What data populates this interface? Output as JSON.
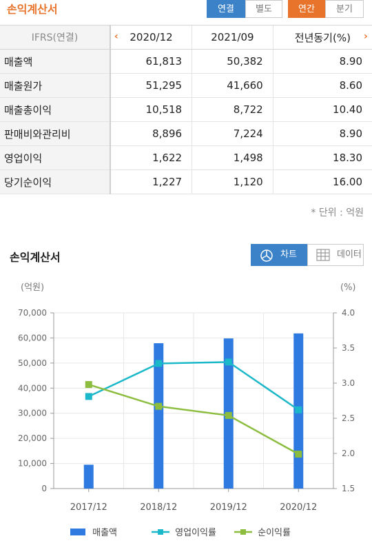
{
  "header": {
    "title": "손익계산서",
    "toggle1": {
      "consolidated": "연결",
      "separate": "별도"
    },
    "toggle2": {
      "annual": "연간",
      "quarterly": "분기"
    }
  },
  "table": {
    "columns": [
      "IFRS(연결)",
      "2020/12",
      "2021/09",
      "전년동기(%)"
    ],
    "rows": [
      {
        "label": "매출액",
        "v1": "61,813",
        "v2": "50,382",
        "v3": "8.90"
      },
      {
        "label": "매출원가",
        "v1": "51,295",
        "v2": "41,660",
        "v3": "8.60"
      },
      {
        "label": "매출총이익",
        "v1": "10,518",
        "v2": "8,722",
        "v3": "10.40"
      },
      {
        "label": "판매비와관리비",
        "v1": "8,896",
        "v2": "7,224",
        "v3": "8.90"
      },
      {
        "label": "영업이익",
        "v1": "1,622",
        "v2": "1,498",
        "v3": "18.30"
      },
      {
        "label": "당기순이익",
        "v1": "1,227",
        "v2": "1,120",
        "v3": "16.00"
      }
    ],
    "unit_note": "* 단위 : 억원"
  },
  "chart_section": {
    "title": "손익계산서",
    "chart_button": "차트",
    "data_button": "데이터"
  },
  "colors": {
    "blue": "#2f7ae0",
    "cyan": "#1bb8c9",
    "green": "#8cbd3f",
    "orange": "#e8742c"
  },
  "chart_data": {
    "type": "bar",
    "categories": [
      "2017/12",
      "2018/12",
      "2019/12",
      "2020/12"
    ],
    "y_left_label": "(억원)",
    "y_right_label": "(%)",
    "y_left_range": [
      0,
      70000
    ],
    "y_right_range": [
      1.5,
      4.0
    ],
    "y_left_ticks": [
      "0",
      "10,000",
      "20,000",
      "30,000",
      "40,000",
      "50,000",
      "60,000",
      "70,000"
    ],
    "y_right_ticks": [
      "1.5",
      "2.0",
      "2.5",
      "3.0",
      "3.5",
      "4.0"
    ],
    "grid": true,
    "legend_position": "bottom",
    "series": [
      {
        "name": "매출액",
        "type": "bar",
        "axis": "left",
        "values": [
          9500,
          57900,
          59800,
          61813
        ]
      },
      {
        "name": "영업이익률",
        "type": "line",
        "axis": "right",
        "values": [
          2.81,
          3.28,
          3.3,
          2.62
        ]
      },
      {
        "name": "순이익률",
        "type": "line",
        "axis": "right",
        "values": [
          2.98,
          2.67,
          2.54,
          1.99
        ]
      }
    ]
  }
}
